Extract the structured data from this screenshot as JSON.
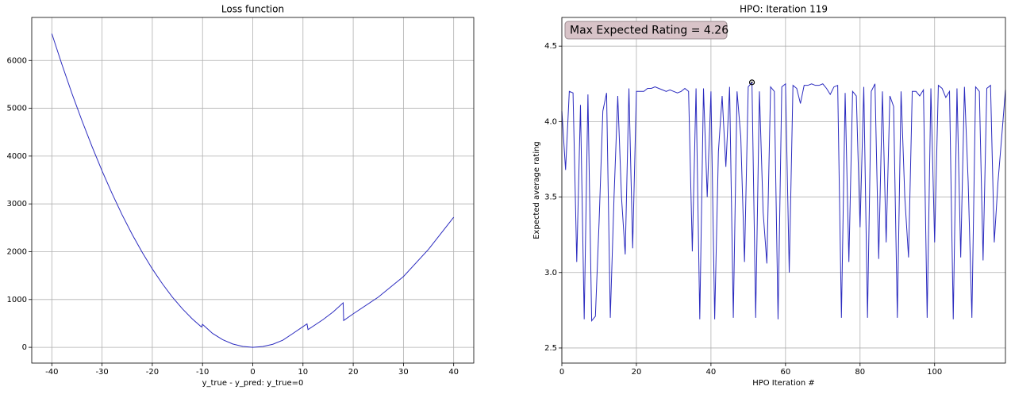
{
  "chart_data": [
    {
      "type": "line",
      "title": "Loss function",
      "xlabel": "y_true - y_pred: y_true=0",
      "color": "#2b2bbf",
      "grid": true,
      "x": [
        -40,
        -38,
        -36,
        -34,
        -32,
        -30,
        -28,
        -26,
        -24,
        -22,
        -20,
        -18,
        -16,
        -14,
        -12,
        -10.2,
        -10,
        -8,
        -6,
        -4,
        -2,
        0,
        2,
        4,
        6,
        8,
        10.8,
        11,
        14,
        16,
        18,
        18.1,
        20,
        25,
        30,
        35,
        40
      ],
      "values": [
        6560,
        5920,
        5310,
        4740,
        4200,
        3690,
        3215,
        2770,
        2360,
        1985,
        1640,
        1330,
        1050,
        805,
        590,
        425,
        480,
        290,
        160,
        70,
        18,
        0,
        16,
        64,
        150,
        290,
        490,
        370,
        580,
        740,
        930,
        560,
        700,
        1050,
        1480,
        2050,
        2720
      ],
      "xlim": [
        -44,
        44
      ],
      "xticks": [
        -40,
        -30,
        -20,
        -10,
        0,
        10,
        20,
        30,
        40
      ],
      "ylim": [
        -330,
        6900
      ],
      "yticks": [
        0,
        1000,
        2000,
        3000,
        4000,
        5000,
        6000
      ]
    },
    {
      "type": "line",
      "title": "HPO: Iteration 119",
      "xlabel": "HPO Iteration #",
      "ylabel": "Expected average rating",
      "color": "#2b2bbf",
      "grid": true,
      "x": [
        0,
        1,
        2,
        3,
        4,
        5,
        6,
        7,
        8,
        9,
        10,
        11,
        12,
        13,
        14,
        15,
        16,
        17,
        18,
        19,
        20,
        21,
        22,
        23,
        24,
        25,
        26,
        27,
        28,
        29,
        30,
        31,
        32,
        33,
        34,
        35,
        36,
        37,
        38,
        39,
        40,
        41,
        42,
        43,
        44,
        45,
        46,
        47,
        48,
        49,
        50,
        51,
        52,
        53,
        54,
        55,
        56,
        57,
        58,
        59,
        60,
        61,
        62,
        63,
        64,
        65,
        66,
        67,
        68,
        69,
        70,
        71,
        72,
        73,
        74,
        75,
        76,
        77,
        78,
        79,
        80,
        81,
        82,
        83,
        84,
        85,
        86,
        87,
        88,
        89,
        90,
        91,
        92,
        93,
        94,
        95,
        96,
        97,
        98,
        99,
        100,
        101,
        102,
        103,
        104,
        105,
        106,
        107,
        108,
        109,
        110,
        111,
        112,
        113,
        114,
        115,
        116,
        117,
        118,
        119
      ],
      "values": [
        4.07,
        3.68,
        4.2,
        4.19,
        3.07,
        4.11,
        2.69,
        4.18,
        2.68,
        2.71,
        3.34,
        4.07,
        4.19,
        2.7,
        3.5,
        4.17,
        3.5,
        3.12,
        4.22,
        3.16,
        4.2,
        4.2,
        4.2,
        4.22,
        4.22,
        4.23,
        4.22,
        4.21,
        4.2,
        4.21,
        4.2,
        4.19,
        4.2,
        4.22,
        4.2,
        3.14,
        4.22,
        2.69,
        4.22,
        3.5,
        4.2,
        2.69,
        3.8,
        4.17,
        3.7,
        4.23,
        2.7,
        4.2,
        3.9,
        3.07,
        4.23,
        4.26,
        2.7,
        4.2,
        3.4,
        3.06,
        4.23,
        4.2,
        2.69,
        4.23,
        4.25,
        3.0,
        4.24,
        4.22,
        4.12,
        4.24,
        4.24,
        4.25,
        4.24,
        4.24,
        4.25,
        4.22,
        4.18,
        4.23,
        4.24,
        2.7,
        4.19,
        3.07,
        4.2,
        4.17,
        3.3,
        4.23,
        2.7,
        4.2,
        4.25,
        3.09,
        4.2,
        3.2,
        4.17,
        4.1,
        2.7,
        4.2,
        3.5,
        3.1,
        4.2,
        4.2,
        4.17,
        4.21,
        2.7,
        4.22,
        3.2,
        4.24,
        4.22,
        4.16,
        4.2,
        2.69,
        4.22,
        3.1,
        4.23,
        3.6,
        2.7,
        4.23,
        4.2,
        3.08,
        4.22,
        4.24,
        3.2,
        3.6,
        3.9,
        4.21
      ],
      "highlight": {
        "x": 51,
        "y": 4.26
      },
      "annotation": "Max Expected Rating = 4.26",
      "xlim": [
        0,
        119
      ],
      "xticks": [
        0,
        20,
        40,
        60,
        80,
        100
      ],
      "ylim": [
        2.4,
        4.69
      ],
      "yticks": [
        2.5,
        {
          "value": 3,
          "label": "3.0"
        },
        3.5,
        {
          "value": 4,
          "label": "4.0"
        },
        4.5
      ]
    }
  ]
}
